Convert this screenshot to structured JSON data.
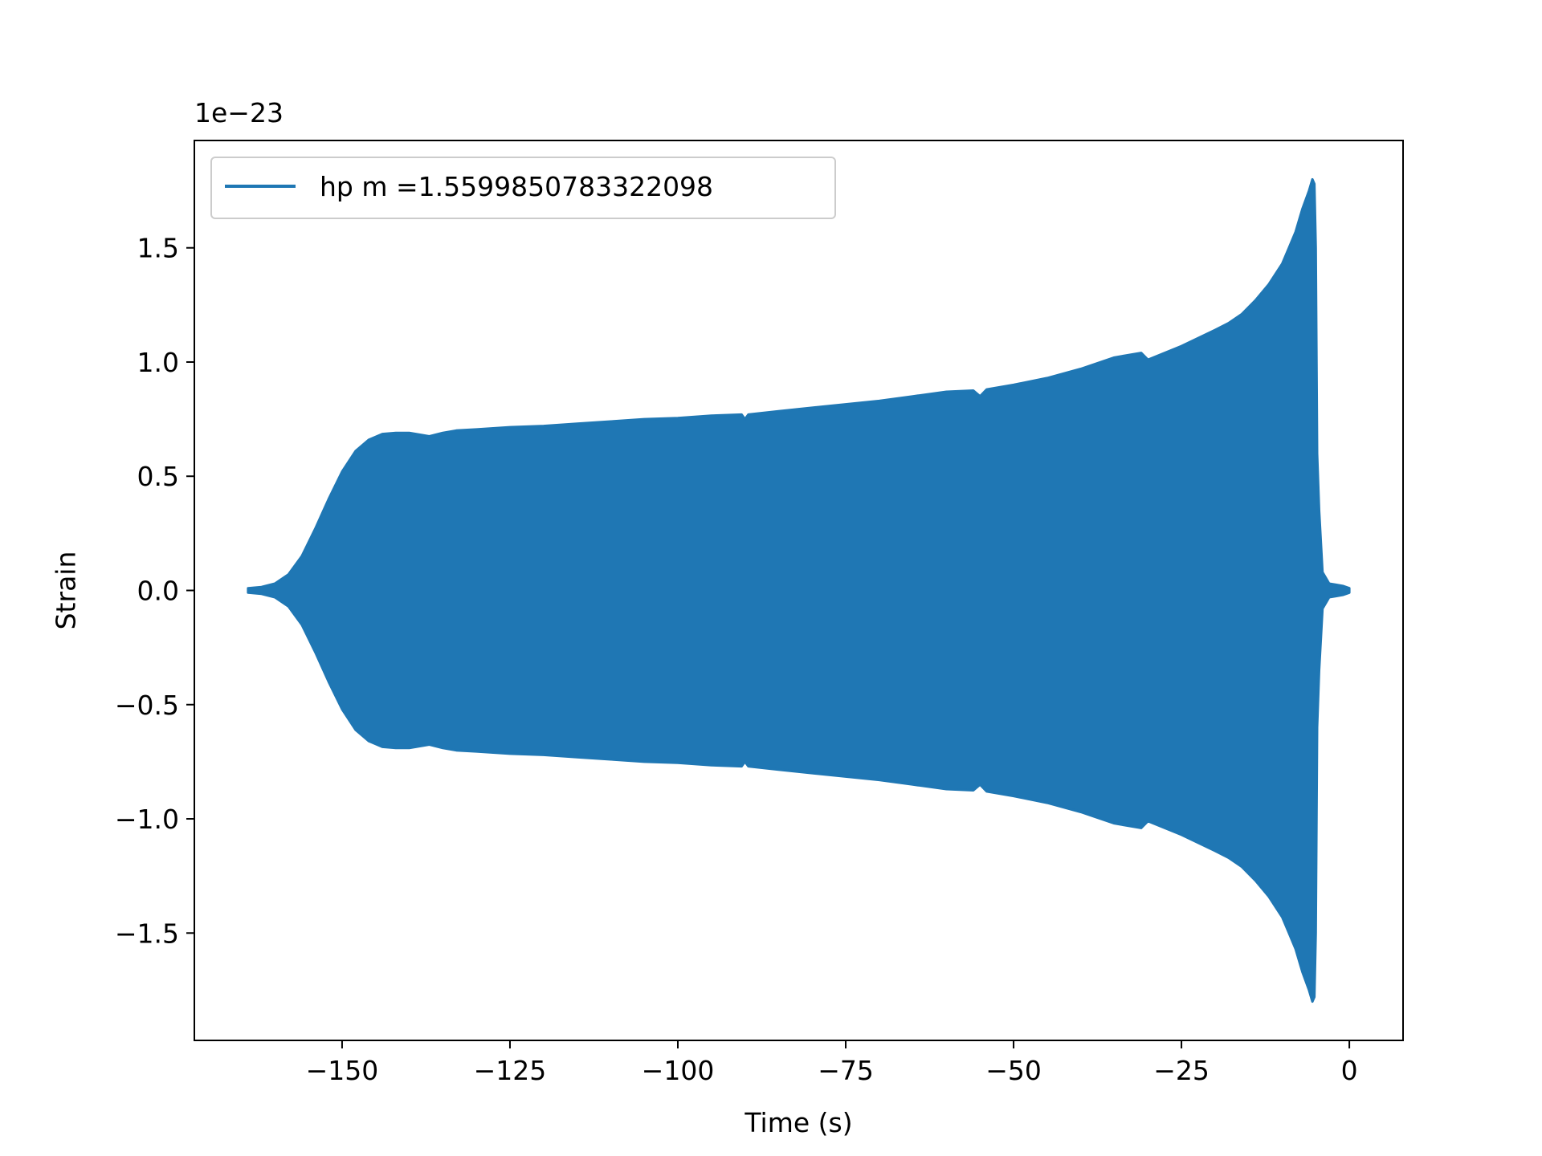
{
  "chart_data": {
    "type": "line",
    "title": "",
    "xlabel": "Time (s)",
    "ylabel": "Strain",
    "y_offset_label": "1e−23",
    "y_scale_factor": 1e-23,
    "xlim": [
      -172,
      8
    ],
    "ylim": [
      -1.97,
      1.97
    ],
    "x_ticks": [
      -150,
      -125,
      -100,
      -75,
      -50,
      -25,
      0
    ],
    "x_tick_labels": [
      "−150",
      "−125",
      "−100",
      "−75",
      "−50",
      "−25",
      "0"
    ],
    "y_ticks": [
      -1.5,
      -1.0,
      -0.5,
      0.0,
      0.5,
      1.0,
      1.5
    ],
    "y_tick_labels": [
      "−1.5",
      "−1.0",
      "−0.5",
      "0.0",
      "0.5",
      "1.0",
      "1.5"
    ],
    "grid": false,
    "legend_position": "top-left",
    "series": [
      {
        "name": "hp m =1.5599850783322098",
        "color": "#1f77b4",
        "envelope": {
          "x": [
            -164.0,
            -162.0,
            -160.0,
            -158.0,
            -156.0,
            -154.0,
            -152.0,
            -150.0,
            -148.0,
            -146.0,
            -144.0,
            -142.0,
            -140.0,
            -137.0,
            -135.0,
            -133.0,
            -130.0,
            -125.0,
            -120.0,
            -115.0,
            -110.0,
            -105.0,
            -100.0,
            -95.0,
            -90.5,
            -90.0,
            -89.5,
            -85.0,
            -80.0,
            -75.0,
            -70.0,
            -65.0,
            -60.0,
            -56.0,
            -55.0,
            -54.0,
            -50.0,
            -45.0,
            -40.0,
            -35.0,
            -31.0,
            -30.0,
            -25.0,
            -20.0,
            -18.0,
            -16.0,
            -14.0,
            -12.0,
            -10.0,
            -9.0,
            -8.0,
            -7.0,
            -6.0,
            -5.5,
            -5.2,
            -5.0,
            -4.8,
            -4.5,
            -4.0,
            -3.0,
            -2.0,
            -1.0,
            0.0
          ],
          "upper": [
            0.01,
            0.015,
            0.03,
            0.07,
            0.15,
            0.27,
            0.4,
            0.52,
            0.61,
            0.66,
            0.685,
            0.69,
            0.69,
            0.675,
            0.69,
            0.7,
            0.705,
            0.715,
            0.72,
            0.73,
            0.74,
            0.75,
            0.755,
            0.765,
            0.77,
            0.75,
            0.77,
            0.785,
            0.8,
            0.815,
            0.83,
            0.85,
            0.87,
            0.875,
            0.85,
            0.88,
            0.9,
            0.93,
            0.97,
            1.02,
            1.04,
            1.01,
            1.07,
            1.14,
            1.17,
            1.21,
            1.27,
            1.34,
            1.43,
            1.5,
            1.57,
            1.67,
            1.75,
            1.8,
            1.78,
            1.5,
            0.6,
            0.35,
            0.08,
            0.03,
            0.025,
            0.02,
            0.01
          ],
          "lower": [
            -0.01,
            -0.015,
            -0.03,
            -0.07,
            -0.15,
            -0.27,
            -0.4,
            -0.52,
            -0.61,
            -0.66,
            -0.685,
            -0.69,
            -0.69,
            -0.675,
            -0.69,
            -0.7,
            -0.705,
            -0.715,
            -0.72,
            -0.73,
            -0.74,
            -0.75,
            -0.755,
            -0.765,
            -0.77,
            -0.75,
            -0.77,
            -0.785,
            -0.8,
            -0.815,
            -0.83,
            -0.85,
            -0.87,
            -0.875,
            -0.85,
            -0.88,
            -0.9,
            -0.93,
            -0.97,
            -1.02,
            -1.04,
            -1.01,
            -1.07,
            -1.14,
            -1.17,
            -1.21,
            -1.27,
            -1.34,
            -1.43,
            -1.5,
            -1.57,
            -1.67,
            -1.75,
            -1.8,
            -1.78,
            -1.5,
            -0.6,
            -0.35,
            -0.08,
            -0.03,
            -0.025,
            -0.02,
            -0.01
          ]
        }
      }
    ]
  }
}
